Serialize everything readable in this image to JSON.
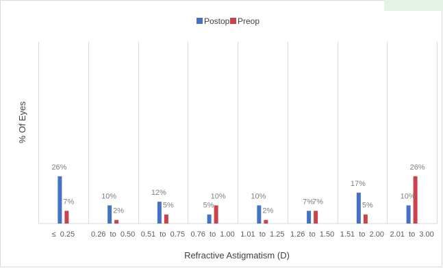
{
  "chart_data": {
    "type": "bar",
    "xlabel": "Refractive Astigmatism (D)",
    "ylabel": "% Of Eyes",
    "ylim": [
      0,
      100
    ],
    "grid": "vertical category dividers",
    "legend_position": "top-center",
    "categories": [
      "≤  0.25",
      "0.26  to  0.50",
      "0.51  to  0.75",
      "0.76  to  1.00",
      "1.01  to  1.25",
      "1.26  to  1.50",
      "1.51  to  2.00",
      "2.01  to  3.00"
    ],
    "series": [
      {
        "name": "Postop",
        "color": "#4472c4",
        "values": [
          26,
          10,
          12,
          5,
          10,
          7,
          17,
          10
        ]
      },
      {
        "name": "Preop",
        "color": "#c9444a",
        "values": [
          7,
          2,
          5,
          10,
          2,
          7,
          5,
          26
        ]
      }
    ],
    "value_suffix": "%"
  }
}
